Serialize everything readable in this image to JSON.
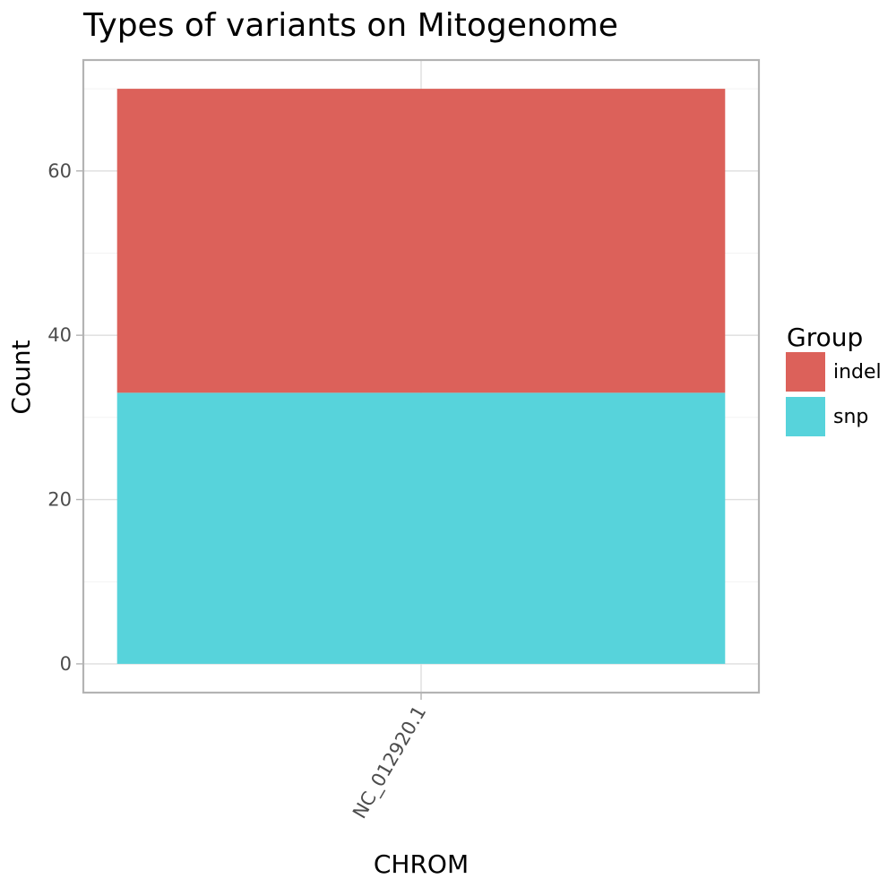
{
  "chart_data": {
    "type": "bar",
    "stacked": true,
    "title": "Types of variants on Mitogenome",
    "xlabel": "CHROM",
    "ylabel": "Count",
    "categories": [
      "NC_012920.1"
    ],
    "series": [
      {
        "name": "indel",
        "values": [
          37
        ],
        "color": "#dc615a"
      },
      {
        "name": "snp",
        "values": [
          33
        ],
        "color": "#57d3db"
      }
    ],
    "ylim": [
      -3.5,
      73.5
    ],
    "yticks": [
      0,
      20,
      40,
      60
    ],
    "grid": true,
    "legend": {
      "title": "Group",
      "position": "right"
    }
  }
}
